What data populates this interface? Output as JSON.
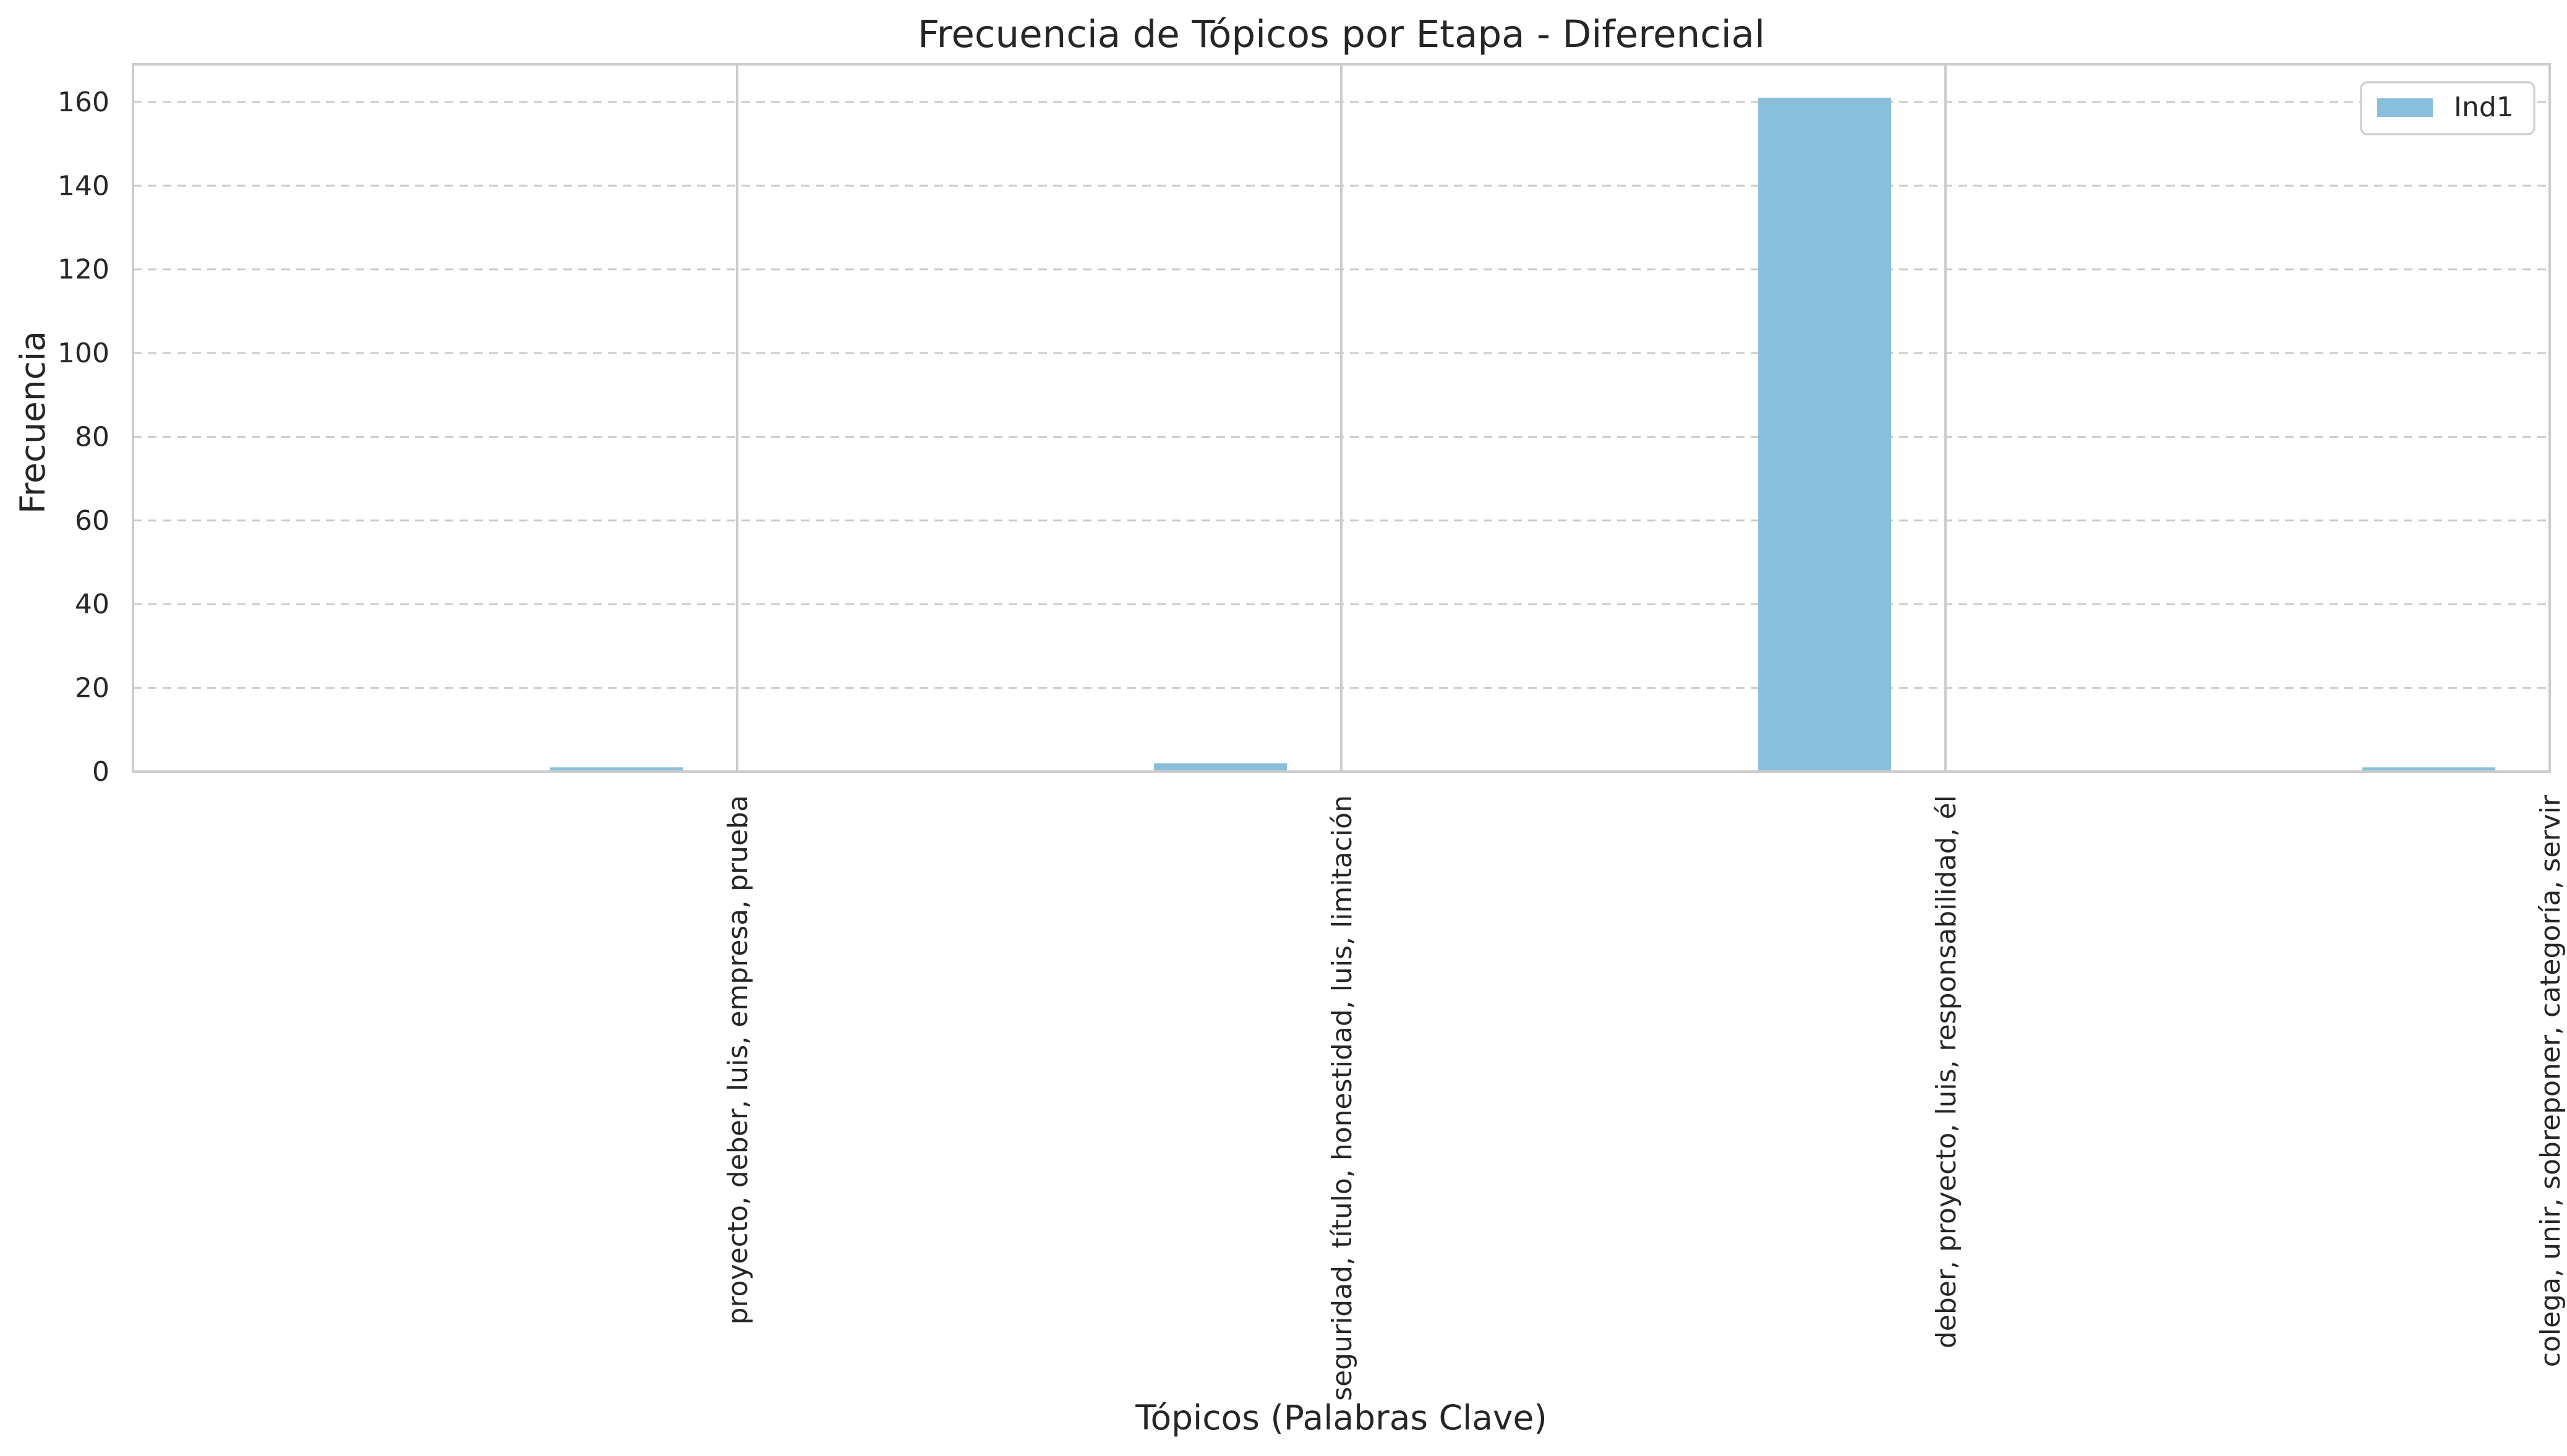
{
  "chart_data": {
    "type": "bar",
    "title": "Frecuencia de Tópicos por Etapa - Diferencial",
    "xlabel": "Tópicos (Palabras Clave)",
    "ylabel": "Frecuencia",
    "categories": [
      "proyecto, deber, luis, empresa, prueba",
      "seguridad, título, honestidad, luis, limitación",
      "deber, proyecto, luis, responsabilidad, él",
      "colega, unir, sobreponer, categoría, servir"
    ],
    "series": [
      {
        "name": "Ind1",
        "values": [
          1,
          2,
          161,
          1
        ],
        "color": "#89bedc"
      }
    ],
    "ylim": [
      0,
      169
    ],
    "yticks": [
      0,
      20,
      40,
      60,
      80,
      100,
      120,
      140,
      160
    ],
    "grid": {
      "y": "dashed",
      "x": "solid"
    },
    "legend_position": "top-right"
  }
}
